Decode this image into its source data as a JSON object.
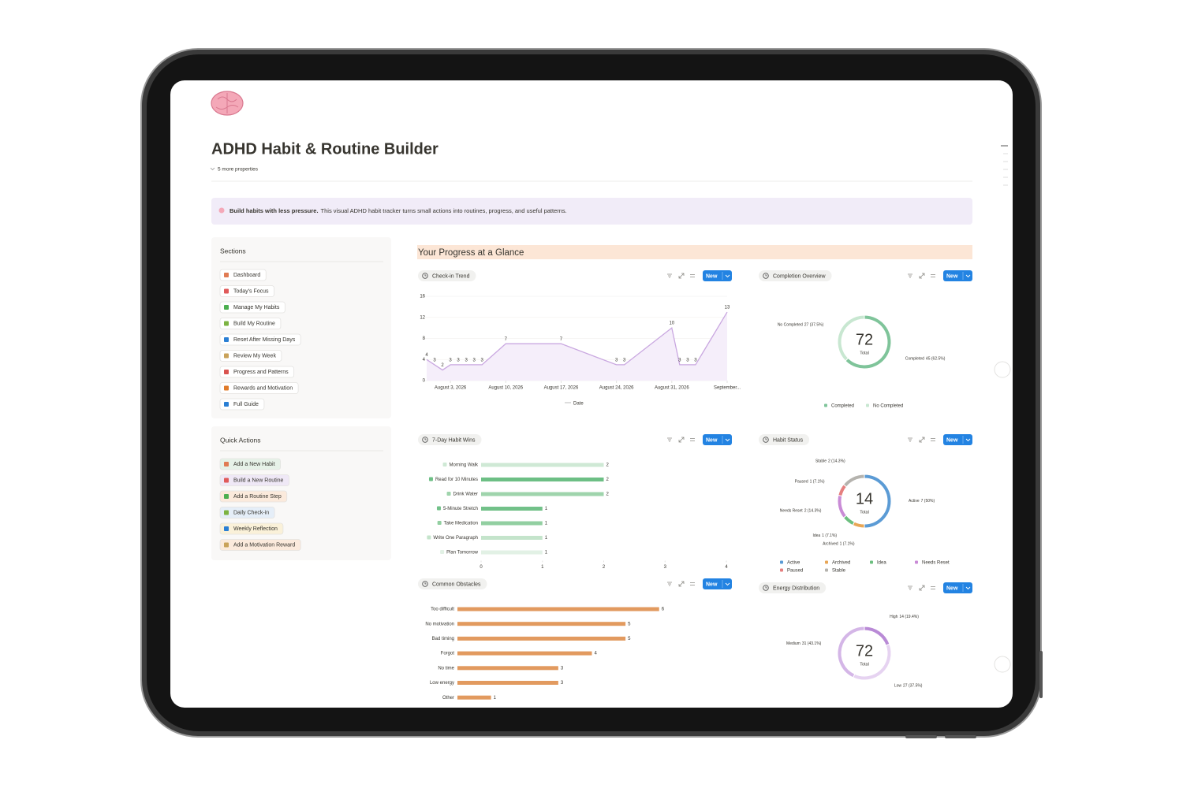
{
  "page": {
    "title": "ADHD Habit & Routine Builder",
    "more_properties": "5 more properties",
    "callout": {
      "bold": "Build habits with less pressure.",
      "text": "This visual ADHD habit tracker turns small actions into routines, progress, and useful patterns."
    }
  },
  "sections": {
    "title": "Sections",
    "items": [
      "Dashboard",
      "Today's Focus",
      "Manage My Habits",
      "Build My Routine",
      "Reset After Missing Days",
      "Review My Week",
      "Progress and Patterns",
      "Rewards and Motivation",
      "Full Guide"
    ]
  },
  "quick_actions": {
    "title": "Quick Actions",
    "items": [
      {
        "label": "Add a New Habit",
        "color": "#e6f2e8"
      },
      {
        "label": "Build a New Routine",
        "color": "#efe8f6"
      },
      {
        "label": "Add a Routine Step",
        "color": "#fbeadc"
      },
      {
        "label": "Daily Check-in",
        "color": "#e5eef8"
      },
      {
        "label": "Weekly Reflection",
        "color": "#faf1d9"
      },
      {
        "label": "Add a Motivation Reward",
        "color": "#fbeadc"
      }
    ]
  },
  "progress": {
    "title": "Your Progress at a Glance",
    "check_in_trend": {
      "type": "line",
      "title": "Check-in Trend",
      "button": "New",
      "x_label": "Date",
      "color": "#c9a7e0",
      "x": [
        "2026-07-31",
        "2026-08-01",
        "2026-08-02",
        "2026-08-03",
        "2026-08-04",
        "2026-08-05",
        "2026-08-06",
        "2026-08-07",
        "2026-08-10",
        "2026-08-17",
        "2026-08-24",
        "2026-08-25",
        "2026-08-31",
        "2026-09-01",
        "2026-09-02",
        "2026-09-03",
        "2026-09-07"
      ],
      "values": [
        4,
        3,
        2,
        3,
        3,
        3,
        3,
        3,
        7,
        7,
        3,
        3,
        10,
        3,
        3,
        3,
        13
      ],
      "xlim": [
        "2026-07-31",
        "2026-09-07"
      ],
      "xticks": [
        {
          "value": "2026-08-03",
          "label": "August 3, 2026"
        },
        {
          "value": "2026-08-10",
          "label": "August 10, 2026"
        },
        {
          "value": "2026-08-17",
          "label": "August 17, 2026"
        },
        {
          "value": "2026-08-24",
          "label": "August 24, 2026"
        },
        {
          "value": "2026-08-31",
          "label": "August 31, 2026"
        },
        {
          "value": "2026-09-07",
          "label": "September..."
        }
      ],
      "ylim": [
        0,
        16
      ],
      "yticks": [
        0,
        4,
        8,
        12,
        16
      ],
      "grid": true
    },
    "completion_overview": {
      "type": "pie",
      "title": "Completion Overview",
      "button": "New",
      "categories": [
        "Completed",
        "No Completed"
      ],
      "values": [
        45,
        27
      ],
      "value_labels": [
        "45 (62.5%)",
        "27 (37.5%)"
      ],
      "colors": [
        "#7fc49a",
        "#c8e7d1"
      ],
      "total": 72,
      "total_label": "Total"
    },
    "habit_wins": {
      "type": "hbar",
      "title": "7-Day Habit Wins",
      "button": "New",
      "categories": [
        "Morning Walk",
        "Read for 10 Minutes",
        "Drink Water",
        "5-Minute Stretch",
        "Take Medication",
        "Write One Paragraph",
        "Plan Tomorrow"
      ],
      "values": [
        2,
        2,
        2,
        1,
        1,
        1,
        1
      ],
      "colors": [
        "#cfe9d5",
        "#6dbf85",
        "#9fd4ac",
        "#72c189",
        "#92cfa1",
        "#c4e4cb",
        "#e2f1e5"
      ],
      "xlim": [
        0,
        4
      ],
      "xticks": [
        0,
        1,
        2,
        3,
        4
      ]
    },
    "habit_status": {
      "type": "pie",
      "title": "Habit Status",
      "button": "New",
      "categories": [
        "Active",
        "Archived",
        "Idea",
        "Needs Reset",
        "Paused",
        "Stable"
      ],
      "values": [
        7,
        1,
        1,
        2,
        1,
        2
      ],
      "value_labels": [
        "7 (50%)",
        "1 (7.1%)",
        "1 (7.1%)",
        "2 (14.3%)",
        "1 (7.1%)",
        "2 (14.3%)"
      ],
      "colors": [
        "#5b9bd5",
        "#e8a655",
        "#6cbf7f",
        "#c98bd6",
        "#e57f7f",
        "#b5b3ae"
      ],
      "total": 14,
      "total_label": "Total"
    },
    "common_obstacles": {
      "type": "hbar",
      "title": "Common Obstacles",
      "button": "New",
      "categories": [
        "Too difficult",
        "No motivation",
        "Bad timing",
        "Forgot",
        "No time",
        "Low energy",
        "Other"
      ],
      "values": [
        6,
        5,
        5,
        4,
        3,
        3,
        1
      ],
      "color": "#e29a5f",
      "xlim": [
        0,
        8
      ]
    },
    "energy_distribution": {
      "type": "pie",
      "title": "Energy Distribution",
      "button": "New",
      "categories": [
        "High",
        "Low",
        "Medium"
      ],
      "values": [
        14,
        27,
        31
      ],
      "value_labels": [
        "14 (19.4%)",
        "27 (37.5%)",
        "31 (43.1%)"
      ],
      "colors": [
        "#b98ad6",
        "#e6d3f1",
        "#d4b6e7"
      ],
      "total": 72,
      "total_label": "Total"
    }
  }
}
